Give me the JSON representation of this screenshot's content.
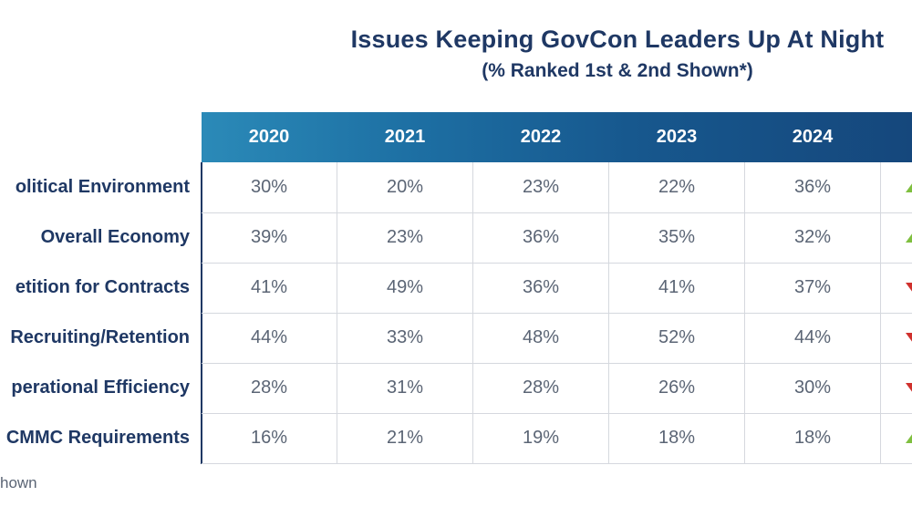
{
  "chart_data": {
    "type": "table",
    "title": "Issues Keeping GovCon Leaders Up At Night",
    "subtitle": "(% Ranked 1st & 2nd Shown*)",
    "columns": [
      "2020",
      "2021",
      "2022",
      "2023",
      "2024"
    ],
    "rows": [
      {
        "label": "olitical Environment",
        "values": [
          "30%",
          "20%",
          "23%",
          "22%",
          "36%"
        ],
        "trend": "up"
      },
      {
        "label": "Overall Economy",
        "values": [
          "39%",
          "23%",
          "36%",
          "35%",
          "32%"
        ],
        "trend": "up"
      },
      {
        "label": "etition for Contracts",
        "values": [
          "41%",
          "49%",
          "36%",
          "41%",
          "37%"
        ],
        "trend": "down"
      },
      {
        "label": "Recruiting/Retention",
        "values": [
          "44%",
          "33%",
          "48%",
          "52%",
          "44%"
        ],
        "trend": "down"
      },
      {
        "label": "perational Efficiency",
        "values": [
          "28%",
          "31%",
          "28%",
          "26%",
          "30%"
        ],
        "trend": "down"
      },
      {
        "label": "CMMC Requirements",
        "values": [
          "16%",
          "21%",
          "19%",
          "18%",
          "18%"
        ],
        "trend": "up"
      }
    ],
    "trend_colors": {
      "up": "#7fbf3f",
      "down": "#d0312d"
    },
    "header_color": "#17588e"
  },
  "footnote": "hown"
}
